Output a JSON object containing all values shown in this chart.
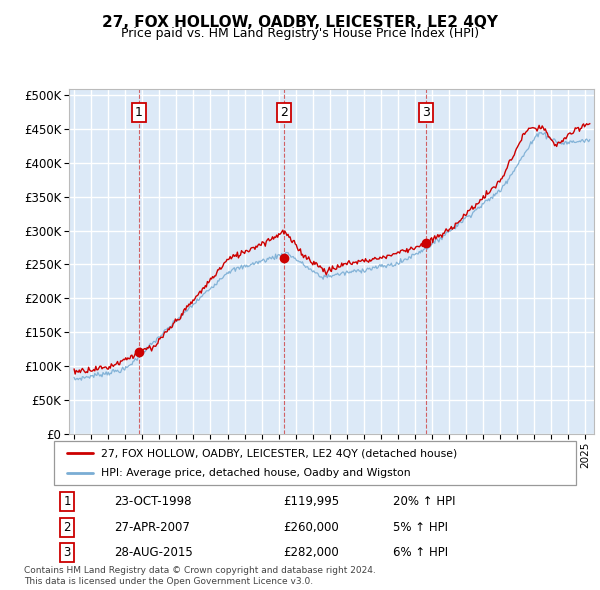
{
  "title": "27, FOX HOLLOW, OADBY, LEICESTER, LE2 4QY",
  "subtitle": "Price paid vs. HM Land Registry's House Price Index (HPI)",
  "bg_color": "#dce9f7",
  "grid_color": "#ffffff",
  "red_color": "#cc0000",
  "blue_color": "#7aadd4",
  "yticks": [
    0,
    50000,
    100000,
    150000,
    200000,
    250000,
    300000,
    350000,
    400000,
    450000,
    500000
  ],
  "ytick_labels": [
    "£0",
    "£50K",
    "£100K",
    "£150K",
    "£200K",
    "£250K",
    "£300K",
    "£350K",
    "£400K",
    "£450K",
    "£500K"
  ],
  "xlim_start": 1994.7,
  "xlim_end": 2025.5,
  "ylim": [
    0,
    510000
  ],
  "purchase_dates": [
    1998.81,
    2007.32,
    2015.65
  ],
  "purchase_prices": [
    119995,
    260000,
    282000
  ],
  "purchase_labels": [
    "1",
    "2",
    "3"
  ],
  "vline_dates": [
    1998.81,
    2007.32,
    2015.65
  ],
  "legend_entries": [
    "27, FOX HOLLOW, OADBY, LEICESTER, LE2 4QY (detached house)",
    "HPI: Average price, detached house, Oadby and Wigston"
  ],
  "table_rows": [
    [
      "1",
      "23-OCT-1998",
      "£119,995",
      "20% ↑ HPI"
    ],
    [
      "2",
      "27-APR-2007",
      "£260,000",
      "5% ↑ HPI"
    ],
    [
      "3",
      "28-AUG-2015",
      "£282,000",
      "6% ↑ HPI"
    ]
  ],
  "footer": "Contains HM Land Registry data © Crown copyright and database right 2024.\nThis data is licensed under the Open Government Licence v3.0."
}
